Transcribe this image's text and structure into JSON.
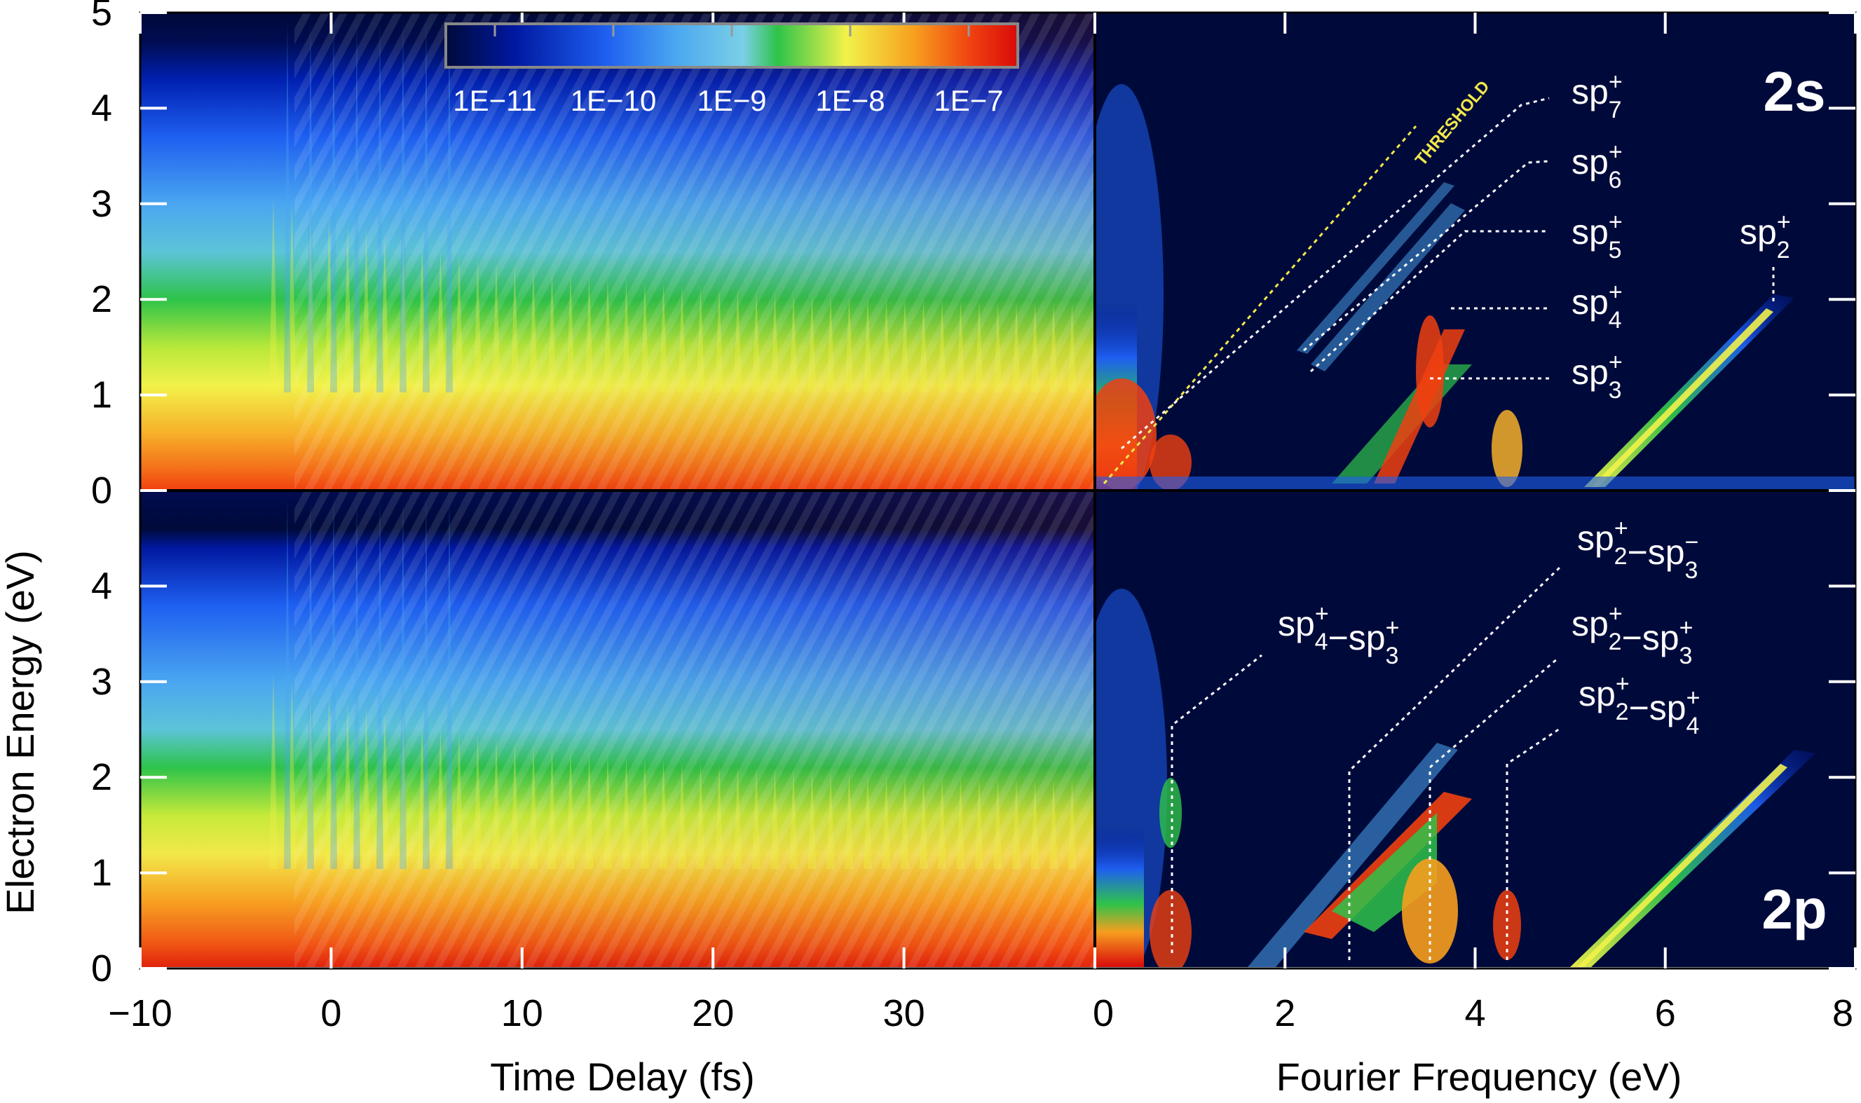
{
  "chart_data": {
    "type": "heatmap",
    "colors": {
      "colormap": [
        "#000a3a",
        "#0018a0",
        "#1e5ff0",
        "#4aa6f0",
        "#7ad0e6",
        "#2ec34a",
        "#f2f24a",
        "#f79e1e",
        "#f04010",
        "#d80a0a"
      ],
      "annotation_line": "#ffffff",
      "threshold_line": "#f2e84b",
      "panel_background": "#000a3a"
    },
    "y_axis": {
      "label": "Electron Energy (eV)",
      "ylim": [
        0,
        5
      ],
      "top_panel_ticks": [
        "0",
        "1",
        "2",
        "3",
        "4",
        "5"
      ],
      "bottom_panel_ticks": [
        "0",
        "1",
        "2",
        "3",
        "4"
      ]
    },
    "x_axis_time": {
      "label": "Time Delay (fs)",
      "xlim": [
        -10,
        40
      ],
      "ticks": [
        "−10",
        "0",
        "10",
        "20",
        "30"
      ]
    },
    "x_axis_freq": {
      "label": "Fourier Frequency (eV)",
      "xlim": [
        0,
        8
      ],
      "ticks": [
        "0",
        "2",
        "4",
        "6",
        "8"
      ]
    },
    "colorbar": {
      "scale": "log",
      "ticks": [
        "1E−11",
        "1E−10",
        "1E−9",
        "1E−8",
        "1E−7"
      ]
    },
    "panels": [
      {
        "tag": "2s",
        "threshold_label": "THRESHOLD",
        "annotations": [
          {
            "base": "sp",
            "sup": "+",
            "sub": "7"
          },
          {
            "base": "sp",
            "sup": "+",
            "sub": "6"
          },
          {
            "base": "sp",
            "sup": "+",
            "sub": "5"
          },
          {
            "base": "sp",
            "sup": "+",
            "sub": "4"
          },
          {
            "base": "sp",
            "sup": "+",
            "sub": "3"
          },
          {
            "base": "sp",
            "sup": "+",
            "sub": "2"
          }
        ]
      },
      {
        "tag": "2p",
        "annotations": [
          {
            "a": {
              "base": "sp",
              "sup": "+",
              "sub": "4"
            },
            "dash": "−",
            "b": {
              "base": "sp",
              "sup": "+",
              "sub": "3"
            }
          },
          {
            "a": {
              "base": "sp",
              "sup": "+",
              "sub": "2"
            },
            "dash": "−",
            "b": {
              "base": "sp",
              "sup": "−",
              "sub": "3"
            }
          },
          {
            "a": {
              "base": "sp",
              "sup": "+",
              "sub": "2"
            },
            "dash": "−",
            "b": {
              "base": "sp",
              "sup": "+",
              "sub": "3"
            }
          },
          {
            "a": {
              "base": "sp",
              "sup": "+",
              "sub": "2"
            },
            "dash": "−",
            "b": {
              "base": "sp",
              "sup": "+",
              "sub": "4"
            }
          }
        ]
      }
    ]
  }
}
